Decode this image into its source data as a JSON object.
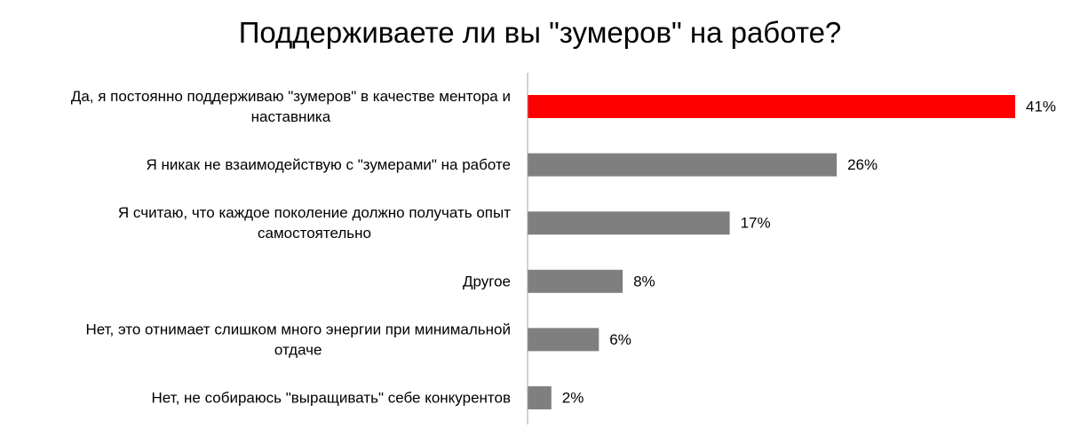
{
  "chart_data": {
    "type": "bar",
    "orientation": "horizontal",
    "title": "Поддерживаете ли вы \"зумеров\" на работе?",
    "categories": [
      [
        "Да, я постоянно поддерживаю \"зумеров\" в качестве ментора и",
        "наставника"
      ],
      [
        "Я никак не взаимодействую с \"зумерами\" на работе"
      ],
      [
        "Я считаю, что каждое поколение должно получать опыт",
        "самостоятельно"
      ],
      [
        "Другое"
      ],
      [
        "Нет, это отнимает слишком много энергии при минимальной",
        "отдаче"
      ],
      [
        "Нет, не собираюсь \"выращивать\" себе конкурентов"
      ]
    ],
    "values": [
      41,
      26,
      17,
      8,
      6,
      2
    ],
    "value_labels": [
      "41%",
      "26%",
      "17%",
      "8%",
      "6%",
      "2%"
    ],
    "unit": "%",
    "xlim": [
      0,
      41
    ],
    "grid": false,
    "legend": "none",
    "colors": {
      "highlight": "#ff0000",
      "default": "#7f7f7f",
      "axis": "#a6a6a6"
    },
    "highlight_index": 0
  }
}
